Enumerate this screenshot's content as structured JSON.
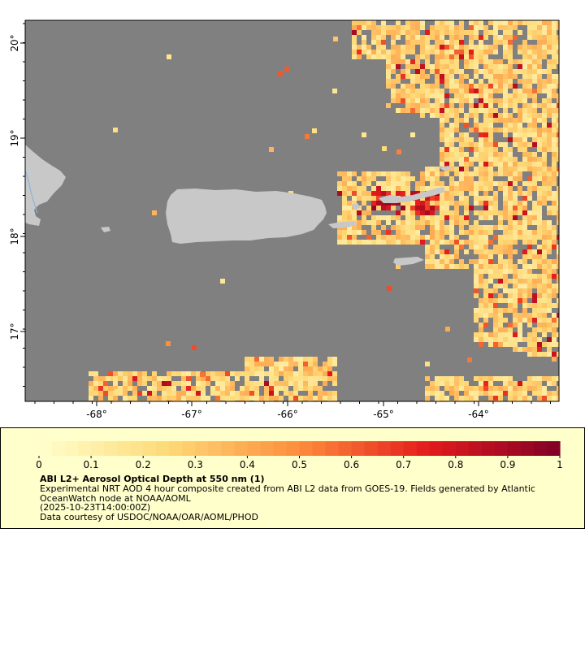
{
  "map": {
    "x_ticks": [
      "-68°",
      "-67°",
      "-66°",
      "-65°",
      "-64°"
    ],
    "y_ticks": [
      "20°",
      "19°",
      "18°",
      "17°"
    ],
    "ocean_color": "#808080",
    "land_color": "#c8c8c8",
    "water_line_color": "#87b4dc"
  },
  "colorbar": {
    "ticks": [
      "0",
      "0.1",
      "0.2",
      "0.3",
      "0.4",
      "0.5",
      "0.6",
      "0.7",
      "0.8",
      "0.9",
      "1"
    ],
    "min": 0,
    "max": 1,
    "steps": 40,
    "color_stops": [
      "#ffffcc",
      "#fed976",
      "#fd8d3c",
      "#e31a1c",
      "#800026"
    ]
  },
  "legend": {
    "title": "ABI L2+ Aerosol Optical Depth at 550 nm (1)",
    "description": "Experimental NRT AOD 4 hour composite created from ABI L2 data from GOES-19. Fields generated by Atlantic OceanWatch node at NOAA/AOML",
    "time": "(2025-10-23T14:00:00Z)",
    "credit": "Data courtesy of USDOC/NOAA/OAR/AOML/PHOD"
  }
}
